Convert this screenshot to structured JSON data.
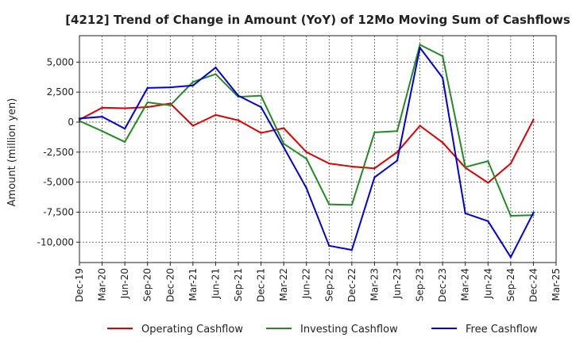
{
  "chart_data": {
    "type": "line",
    "title": "[4212]  Trend of Change in Amount (YoY) of 12Mo Moving Sum of Cashflows",
    "xlabel": "",
    "ylabel": "Amount (million yen)",
    "categories": [
      "Dec-19",
      "Mar-20",
      "Jun-20",
      "Sep-20",
      "Dec-20",
      "Mar-21",
      "Jun-21",
      "Sep-21",
      "Dec-21",
      "Mar-22",
      "Jun-22",
      "Sep-22",
      "Dec-22",
      "Mar-23",
      "Jun-23",
      "Sep-23",
      "Dec-23",
      "Mar-24",
      "Jun-24",
      "Sep-24",
      "Dec-24",
      "Mar-25"
    ],
    "ylim": [
      -11700,
      7200
    ],
    "yticks": [
      5000,
      2500,
      0,
      -2500,
      -5000,
      -7500,
      -10000
    ],
    "ytick_labels": [
      "5,000",
      "2,500",
      "0",
      "-2,500",
      "-5,000",
      "-7,500",
      "-10,000"
    ],
    "grid": true,
    "legend_position": "bottom",
    "series": [
      {
        "name": "Operating Cashflow",
        "color": "#dd0000",
        "values": [
          200,
          1200,
          1150,
          1250,
          1550,
          -300,
          600,
          150,
          -900,
          -500,
          -2500,
          -3450,
          -3700,
          -3850,
          -2500,
          -300,
          -1700,
          -3800,
          -5050,
          -3450,
          200,
          null
        ]
      },
      {
        "name": "Investing Cashflow",
        "color": "#228b22",
        "values": [
          100,
          -750,
          -1650,
          1650,
          1400,
          3350,
          4000,
          2100,
          2200,
          -1800,
          -3050,
          -6850,
          -6900,
          -850,
          -750,
          6450,
          5500,
          -3750,
          -3250,
          -7800,
          -7750,
          null
        ]
      },
      {
        "name": "Free Cashflow",
        "color": "#0000dd",
        "values": [
          300,
          450,
          -550,
          2850,
          2900,
          3050,
          4550,
          2200,
          1250,
          -2100,
          -5500,
          -10300,
          -10650,
          -4600,
          -3200,
          6200,
          3700,
          -7600,
          -8250,
          -11250,
          -7550,
          null
        ]
      }
    ]
  }
}
